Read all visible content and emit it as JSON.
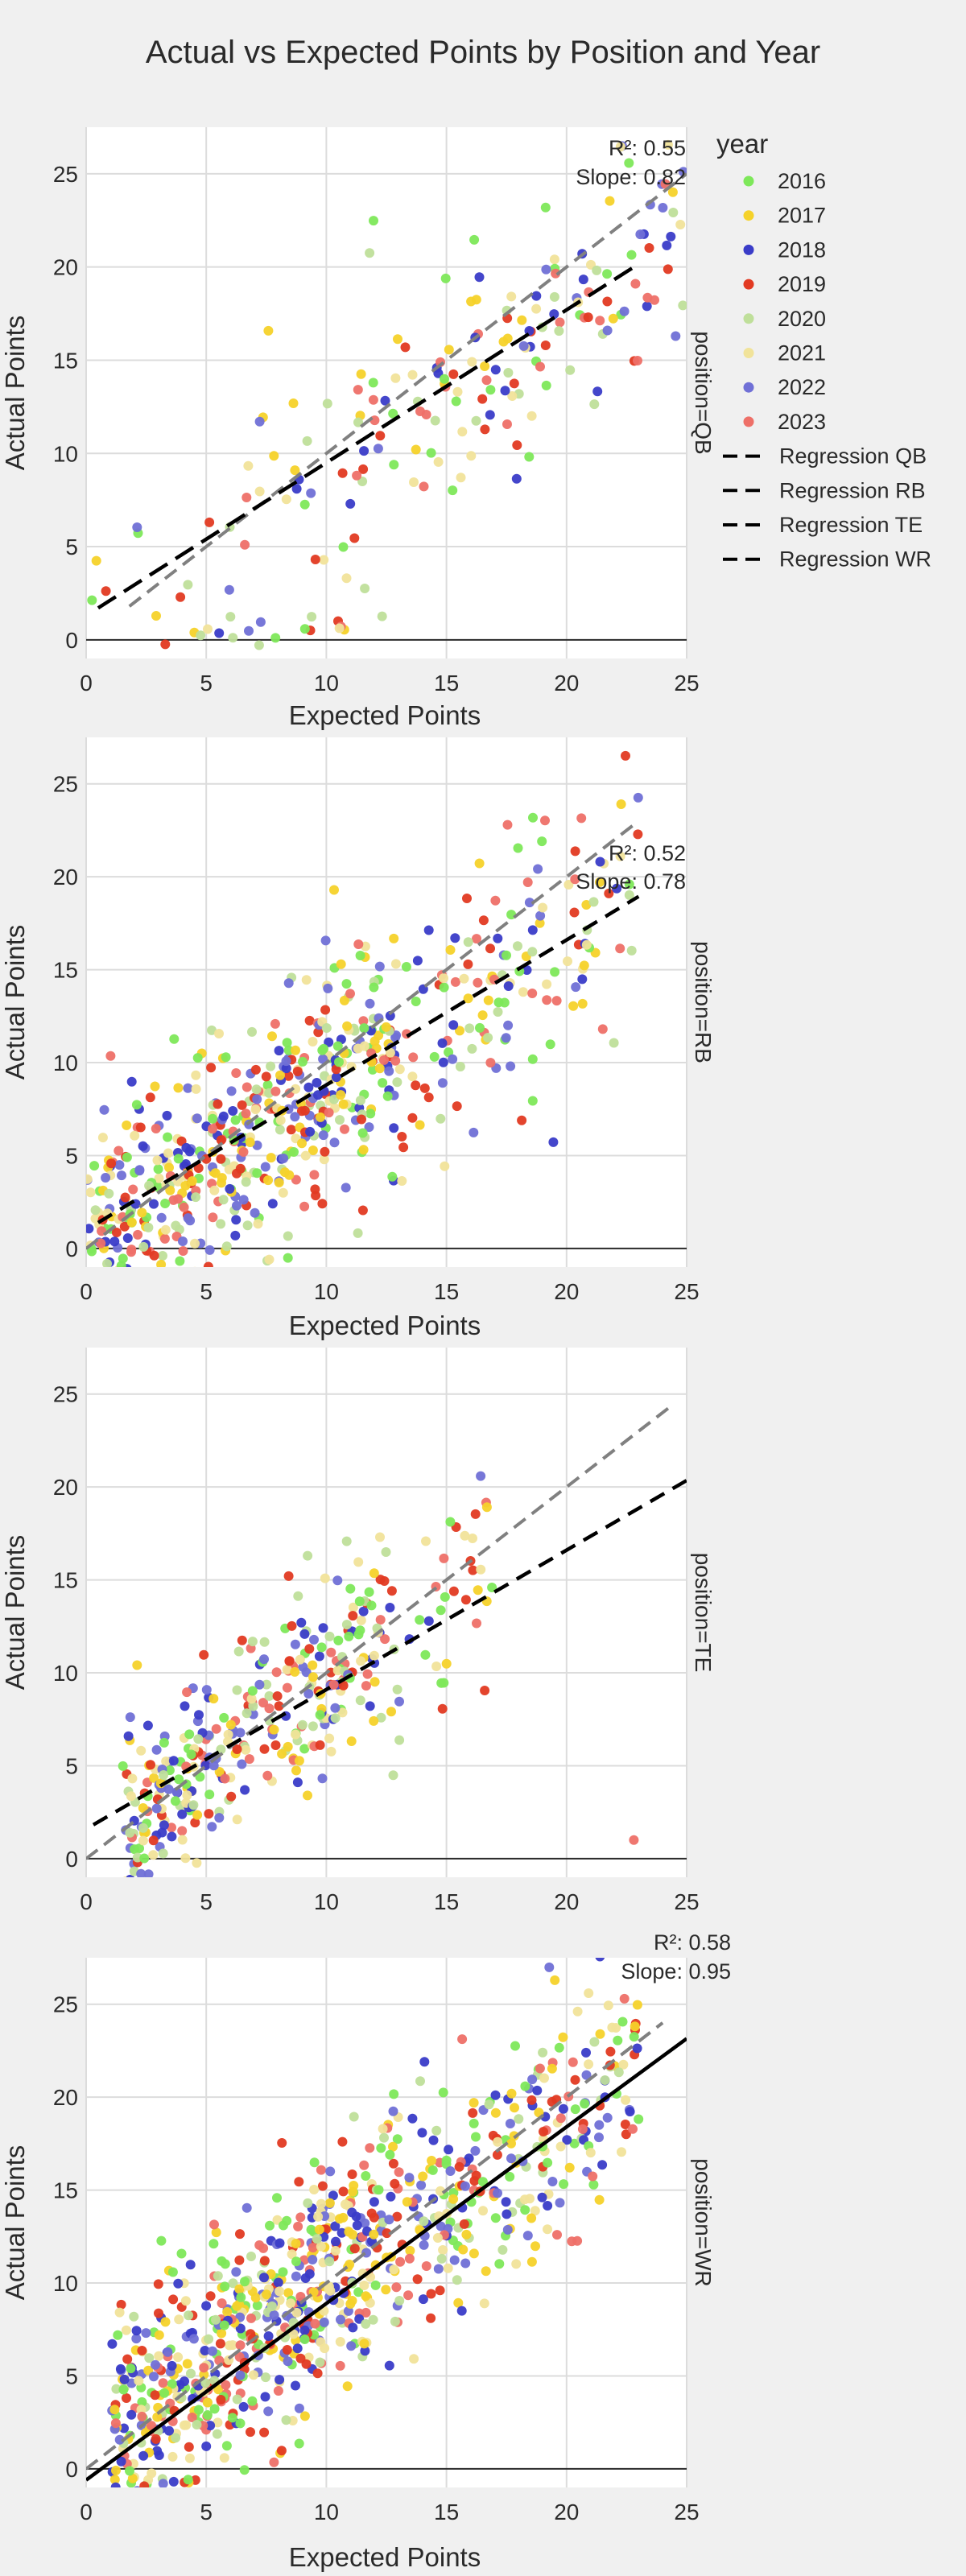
{
  "title": "Actual vs Expected Points by Position and Year",
  "legend": {
    "title": "year",
    "years": [
      {
        "label": "2016",
        "color": "#7ee85a"
      },
      {
        "label": "2017",
        "color": "#f5d22a"
      },
      {
        "label": "2018",
        "color": "#3a3cc8"
      },
      {
        "label": "2019",
        "color": "#e23a22"
      },
      {
        "label": "2020",
        "color": "#bfdf9a"
      },
      {
        "label": "2021",
        "color": "#f1e39a"
      },
      {
        "label": "2022",
        "color": "#7070d6"
      },
      {
        "label": "2023",
        "color": "#ee7068"
      }
    ],
    "regressions": [
      "Regression QB",
      "Regression RB",
      "Regression TE",
      "Regression WR"
    ]
  },
  "chart_data": [
    {
      "type": "scatter",
      "facet": "position=QB",
      "xlabel": "",
      "ylabel": "Actual Points",
      "xlim": [
        0,
        25
      ],
      "ylim": [
        -1,
        27.5
      ],
      "xticks": [
        "0",
        "5",
        "10",
        "15",
        "20",
        "25"
      ],
      "yticks": [
        "0",
        "5",
        "10",
        "15",
        "20",
        "25"
      ],
      "r2_text": "R²: 0.55",
      "slope_text": "Slope: 0.82",
      "regression": {
        "slope": 0.82,
        "intercept": 1.3,
        "x_range": [
          0.5,
          22.8
        ],
        "dash": "long"
      },
      "identity": {
        "x_range": [
          1.8,
          25
        ]
      },
      "seed": 11,
      "clusters": [
        {
          "n": 150,
          "x_min": 11,
          "x_max": 25,
          "slope": 0.82,
          "intercept": 1.3,
          "noise": 3.2
        },
        {
          "n": 35,
          "x_min": 0,
          "x_max": 11,
          "slope": 0.82,
          "intercept": 1.3,
          "noise": 4.5
        },
        {
          "n": 18,
          "x_min": 2,
          "x_max": 12,
          "y_min": -0.5,
          "y_max": 1.5
        }
      ]
    },
    {
      "type": "scatter",
      "facet": "position=RB",
      "xlabel": "Expected Points",
      "ylabel": "Actual Points",
      "xlim": [
        0,
        25
      ],
      "ylim": [
        -1,
        27.5
      ],
      "xticks": [
        "0",
        "5",
        "10",
        "15",
        "20",
        "25"
      ],
      "yticks": [
        "0",
        "5",
        "10",
        "15",
        "20",
        "25"
      ],
      "r2_text": "R²: 0.52",
      "slope_text": "Slope: 0.78",
      "regression": {
        "slope": 0.78,
        "intercept": 1.0,
        "x_range": [
          0.5,
          23
        ],
        "dash": "medium"
      },
      "identity": {
        "x_range": [
          0,
          23
        ]
      },
      "seed": 23,
      "clusters": [
        {
          "n": 520,
          "x_min": 0,
          "x_max": 13,
          "slope": 0.78,
          "intercept": 1.0,
          "noise": 3.0
        },
        {
          "n": 140,
          "x_min": 13,
          "x_max": 23,
          "slope": 0.78,
          "intercept": 1.0,
          "noise": 3.5
        }
      ]
    },
    {
      "type": "scatter",
      "facet": "position=TE",
      "xlabel": "Expected Points",
      "ylabel": "Actual Points",
      "xlim": [
        0,
        25
      ],
      "ylim": [
        -1,
        27.5
      ],
      "xticks": [
        "0",
        "5",
        "10",
        "15",
        "20",
        "25"
      ],
      "yticks": [
        "0",
        "5",
        "10",
        "15",
        "20",
        "25"
      ],
      "r2_text": "",
      "slope_text": "",
      "regression": {
        "slope": 0.75,
        "intercept": 1.6,
        "x_range": [
          0.3,
          25
        ],
        "dash": "medium"
      },
      "identity": {
        "x_range": [
          0,
          24.3
        ]
      },
      "seed": 37,
      "clusters": [
        {
          "n": 330,
          "x_min": 1.5,
          "x_max": 12.5,
          "slope": 0.92,
          "intercept": 0.6,
          "noise": 2.6
        },
        {
          "n": 40,
          "x_min": 12.5,
          "x_max": 17,
          "slope": 0.85,
          "intercept": 1.0,
          "noise": 2.8
        },
        {
          "n": 1,
          "x_min": 22.8,
          "x_max": 22.8,
          "y_min": 1,
          "y_max": 1
        }
      ]
    },
    {
      "type": "scatter",
      "facet": "position=WR",
      "xlabel": "Expected Points",
      "ylabel": "Actual Points",
      "xlim": [
        0,
        25
      ],
      "ylim": [
        -1,
        27.5
      ],
      "xticks": [
        "0",
        "5",
        "10",
        "15",
        "20",
        "25"
      ],
      "yticks": [
        "0",
        "5",
        "10",
        "15",
        "20",
        "25"
      ],
      "r2_text": "R²: 0.58",
      "slope_text": "Slope: 0.95",
      "regression": {
        "slope": 0.95,
        "intercept": -0.6,
        "x_range": [
          0,
          25
        ],
        "dash": "solid"
      },
      "identity": {
        "x_range": [
          0,
          24
        ]
      },
      "seed": 53,
      "clusters": [
        {
          "n": 620,
          "x_min": 1,
          "x_max": 13,
          "slope": 0.95,
          "intercept": 0.8,
          "noise": 3.1
        },
        {
          "n": 260,
          "x_min": 13,
          "x_max": 23,
          "slope": 0.95,
          "intercept": 0.0,
          "noise": 3.2
        }
      ]
    }
  ]
}
